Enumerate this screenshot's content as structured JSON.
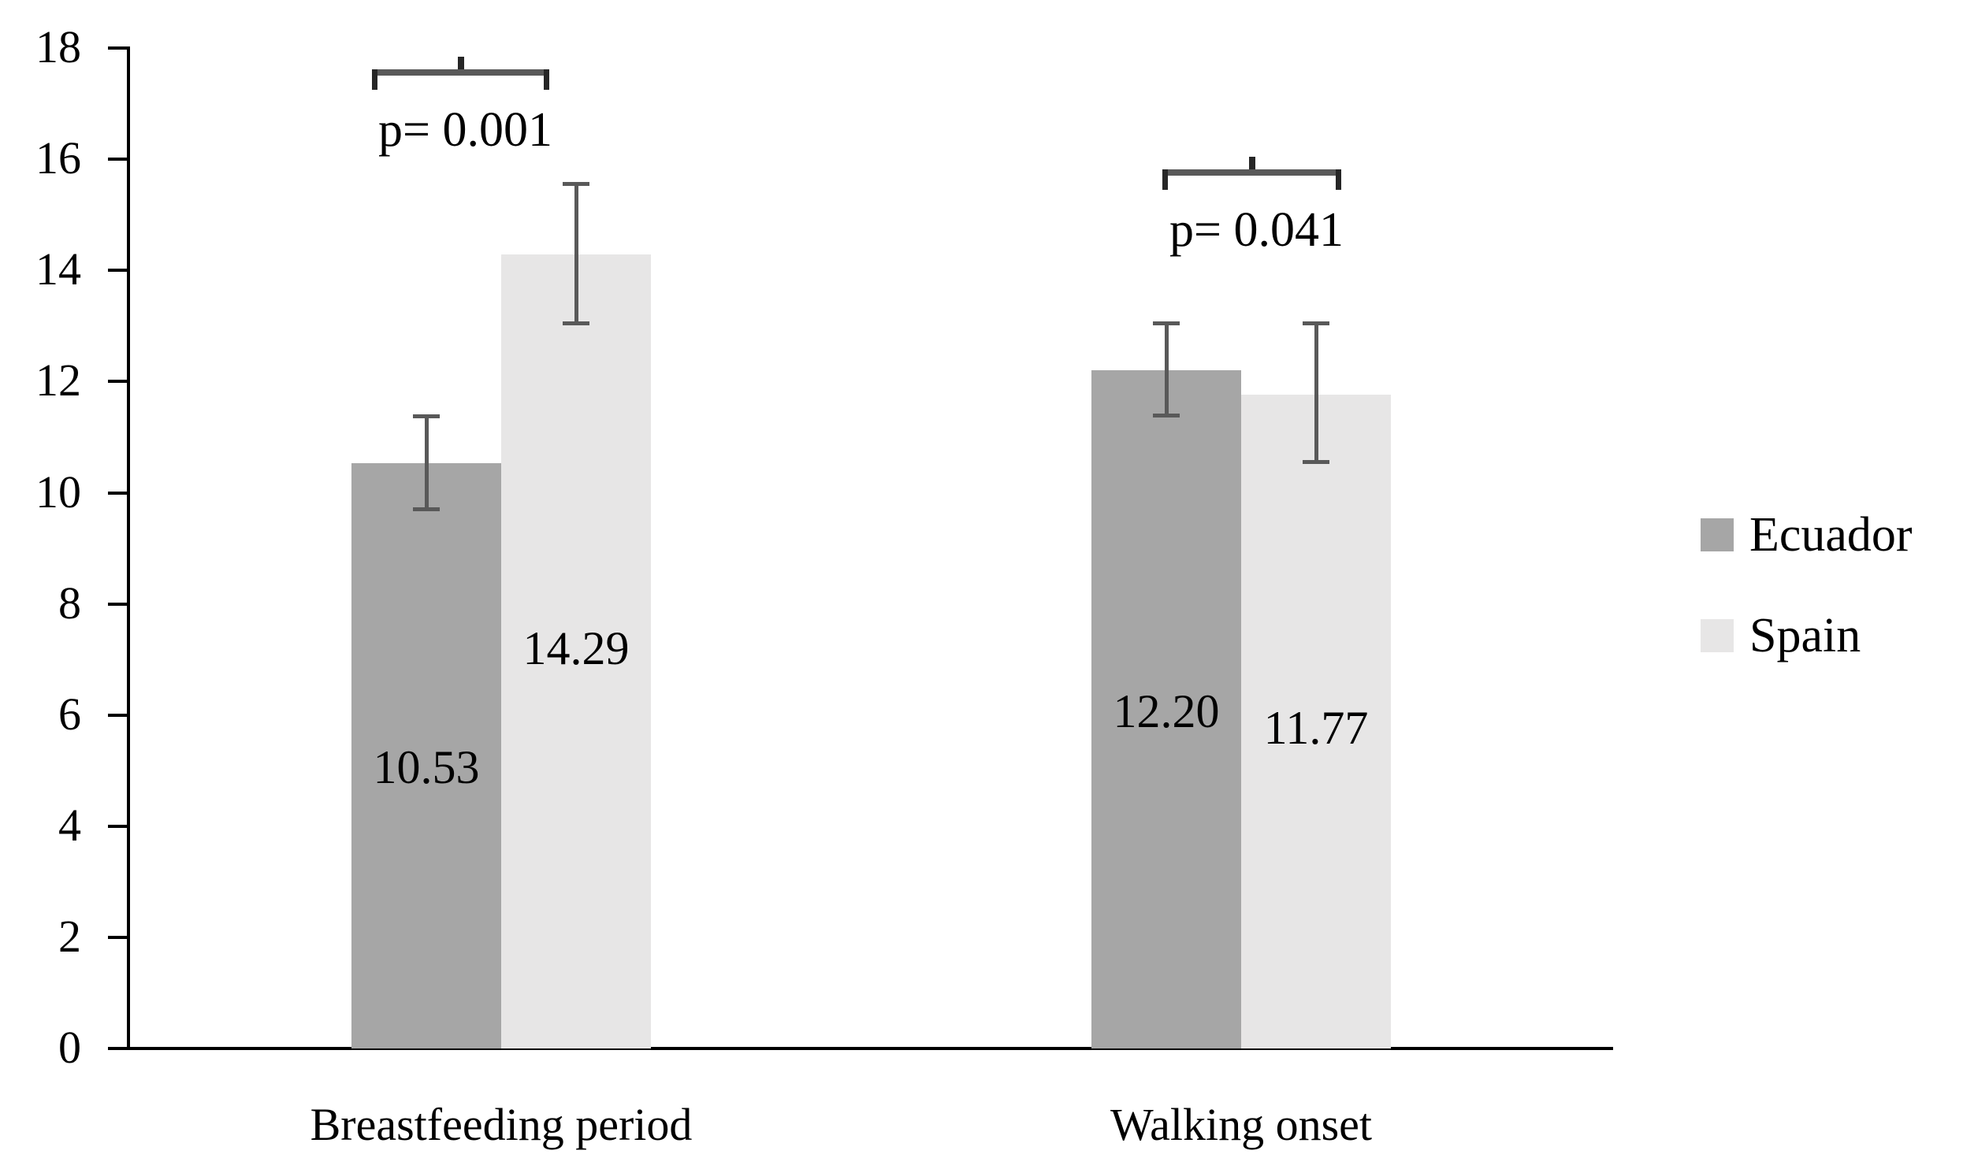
{
  "chart_data": {
    "type": "bar",
    "title": "",
    "xlabel": "",
    "ylabel": "",
    "categories": [
      "Breastfeeding period",
      "Walking onset"
    ],
    "series": [
      {
        "name": "Ecuador",
        "color": "#a6a6a6",
        "values": [
          10.53,
          12.2
        ],
        "value_labels": [
          "10.53",
          "12.20"
        ],
        "error_upper": [
          11.38,
          13.05
        ],
        "error_lower": [
          9.7,
          11.38
        ]
      },
      {
        "name": "Spain",
        "color": "#e7e6e6",
        "values": [
          14.29,
          11.77
        ],
        "value_labels": [
          "14.29",
          "11.77"
        ],
        "error_upper": [
          15.57,
          13.05
        ],
        "error_lower": [
          13.04,
          10.54
        ]
      }
    ],
    "annotations": [
      {
        "group": "Breastfeeding period",
        "label": "p= 0.001"
      },
      {
        "group": "Walking onset",
        "label": "p= 0.041"
      }
    ],
    "yaxis": {
      "ticks": [
        "0",
        "2",
        "4",
        "6",
        "8",
        "10",
        "12",
        "14",
        "16",
        "18"
      ],
      "ylim": [
        0,
        18
      ],
      "step": 2
    },
    "legend": {
      "position": "right",
      "entries": [
        "Ecuador",
        "Spain"
      ]
    },
    "grid": false,
    "background_color": "#ffffff",
    "axis_color": "#000000",
    "text_color": "#000000",
    "error_bar_color": "#595959",
    "bracket_color": "#595959",
    "bracket_end_color": "#262626"
  }
}
